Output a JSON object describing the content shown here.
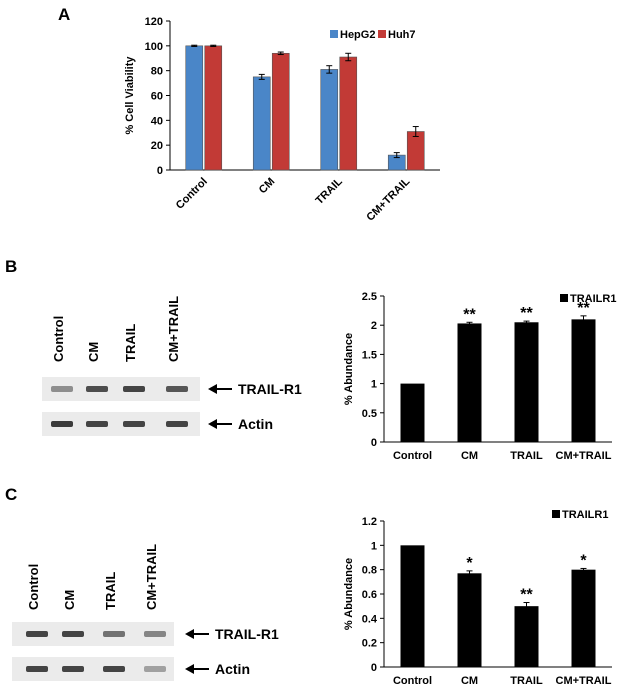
{
  "panels": [
    {
      "letter": "A"
    },
    {
      "letter": "B"
    },
    {
      "letter": "C"
    }
  ],
  "blots": [
    {
      "lane_labels": [
        "Control",
        "CM",
        "TRAIL",
        "CM+TRAIL"
      ],
      "rows": [
        {
          "marker": "TRAIL-R1",
          "band_intensity": [
            0.45,
            0.8,
            0.85,
            0.75
          ]
        },
        {
          "marker": "Actin",
          "band_intensity": [
            0.9,
            0.85,
            0.85,
            0.85
          ]
        }
      ]
    },
    {
      "lane_labels": [
        "Control",
        "CM",
        "TRAIL",
        "CM+TRAIL"
      ],
      "rows": [
        {
          "marker": "TRAIL-R1",
          "band_intensity": [
            0.85,
            0.85,
            0.6,
            0.5
          ]
        },
        {
          "marker": "Actin",
          "band_intensity": [
            0.85,
            0.85,
            0.85,
            0.35
          ]
        }
      ]
    }
  ],
  "chart_data": [
    {
      "type": "bar",
      "title": "",
      "xlabel": "",
      "ylabel": "% Cell Viability",
      "categories": [
        "Control",
        "CM",
        "TRAIL",
        "CM+TRAIL"
      ],
      "series": [
        {
          "name": "HepG2",
          "values": [
            100,
            75,
            81,
            12
          ],
          "errors": [
            0.5,
            2,
            3,
            2
          ],
          "color": "#4a86c8"
        },
        {
          "name": "Huh7",
          "values": [
            100,
            94,
            91,
            31
          ],
          "errors": [
            0.5,
            1,
            3,
            4
          ],
          "color": "#c23a36"
        }
      ],
      "ylim": [
        0,
        120
      ],
      "yticks": [
        0,
        20,
        40,
        60,
        80,
        100,
        120
      ],
      "legend": "top-right",
      "grid": false,
      "tick_rotation": -45
    },
    {
      "type": "bar",
      "title": "",
      "xlabel": "",
      "ylabel": "% Abundance",
      "categories": [
        "Control",
        "CM",
        "TRAIL",
        "CM+TRAIL"
      ],
      "series": [
        {
          "name": "TRAILR1",
          "values": [
            1.0,
            2.03,
            2.05,
            2.1
          ],
          "errors": [
            0,
            0.02,
            0.02,
            0.06
          ],
          "color": "#000000"
        }
      ],
      "significance": [
        "",
        "**",
        "**",
        "**"
      ],
      "ylim": [
        0,
        2.5
      ],
      "yticks": [
        "0",
        "0.5",
        "1",
        "1.5",
        "2",
        "2.5"
      ],
      "legend": "top-right",
      "grid": false,
      "tick_rotation": 0
    },
    {
      "type": "bar",
      "title": "",
      "xlabel": "",
      "ylabel": "% Abundance",
      "categories": [
        "Control",
        "CM",
        "TRAIL",
        "CM+TRAIL"
      ],
      "series": [
        {
          "name": "TRAILR1",
          "values": [
            1.0,
            0.77,
            0.5,
            0.8
          ],
          "errors": [
            0,
            0.02,
            0.03,
            0.01
          ],
          "color": "#000000"
        }
      ],
      "significance": [
        "",
        "*",
        "**",
        "*"
      ],
      "ylim": [
        0,
        1.2
      ],
      "yticks": [
        "0",
        "0.2",
        "0.4",
        "0.6",
        "0.8",
        "1",
        "1.2"
      ],
      "legend": "top-right",
      "grid": false,
      "tick_rotation": 0
    }
  ]
}
